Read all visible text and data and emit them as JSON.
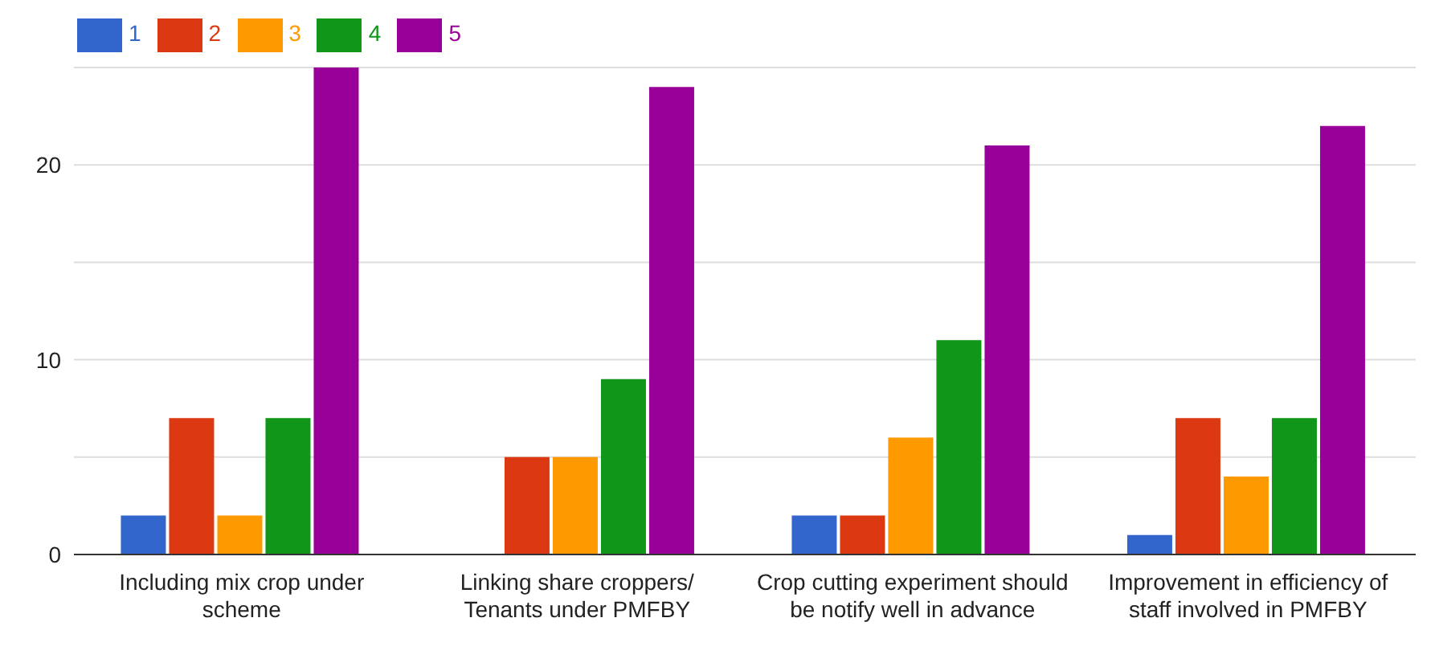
{
  "chart_data": {
    "type": "bar",
    "categories": [
      "Including mix crop under scheme",
      "Linking share croppers/ Tenants under PMFBY",
      "Crop cutting experiment should be notify well in advance",
      "Improvement in efficiency of staff involved in PMFBY"
    ],
    "series": [
      {
        "name": "1",
        "color": "#3366cc",
        "values": [
          2,
          0,
          2,
          1
        ]
      },
      {
        "name": "2",
        "color": "#dc3912",
        "values": [
          7,
          5,
          2,
          7
        ]
      },
      {
        "name": "3",
        "color": "#ff9900",
        "values": [
          2,
          5,
          6,
          4
        ]
      },
      {
        "name": "4",
        "color": "#109618",
        "values": [
          7,
          9,
          11,
          7
        ]
      },
      {
        "name": "5",
        "color": "#990099",
        "values": [
          25,
          24,
          21,
          22
        ]
      }
    ],
    "ylim": [
      0,
      25
    ],
    "yticks": [
      0,
      {
        "value": 5,
        "label": null
      },
      10,
      {
        "value": 15,
        "label": null
      },
      20,
      {
        "value": 25,
        "label": null
      }
    ],
    "grid": "y",
    "legend": "top left"
  }
}
